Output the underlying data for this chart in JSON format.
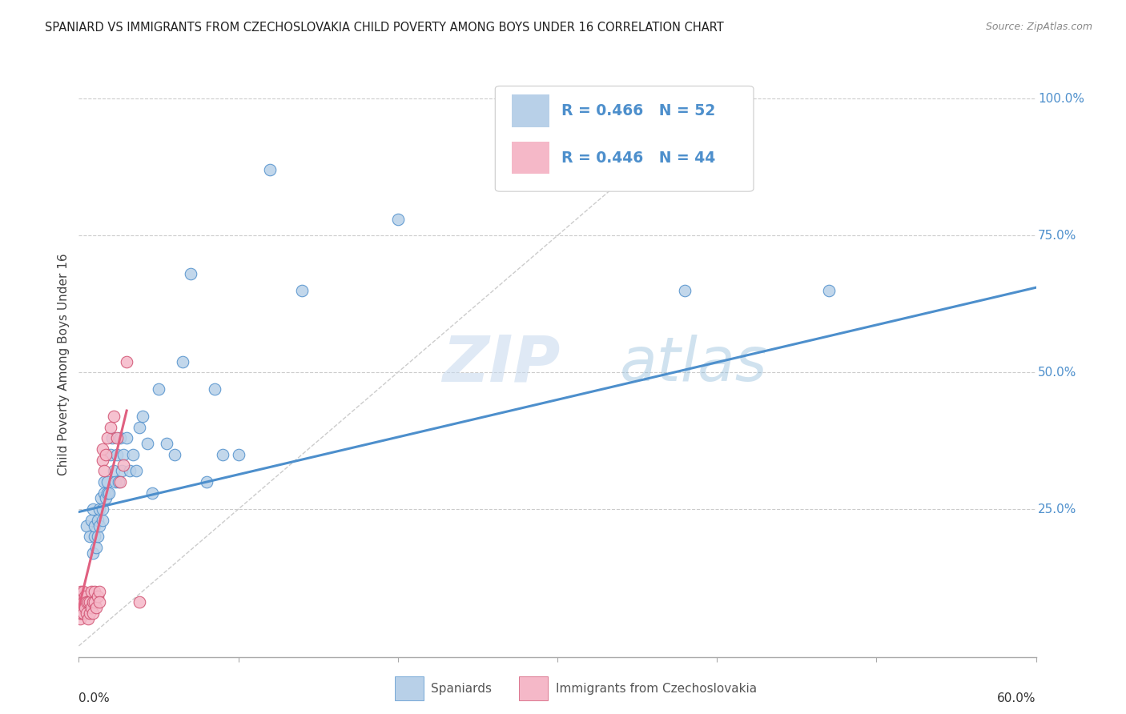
{
  "title": "SPANIARD VS IMMIGRANTS FROM CZECHOSLOVAKIA CHILD POVERTY AMONG BOYS UNDER 16 CORRELATION CHART",
  "source": "Source: ZipAtlas.com",
  "ylabel": "Child Poverty Among Boys Under 16",
  "xlim": [
    0.0,
    0.6
  ],
  "ylim": [
    -0.02,
    1.05
  ],
  "watermark": "ZIPatlas",
  "legend_blue_r": "R = 0.466",
  "legend_blue_n": "N = 52",
  "legend_pink_r": "R = 0.446",
  "legend_pink_n": "N = 44",
  "blue_scatter_color": "#b8d0e8",
  "pink_scatter_color": "#f5b8c8",
  "blue_line_color": "#4d8fcc",
  "pink_line_color": "#e06080",
  "blue_edge_color": "#5090cc",
  "pink_edge_color": "#d05070",
  "legend_color": "#4d8fcc",
  "title_color": "#222222",
  "source_color": "#888888",
  "ylabel_color": "#444444",
  "grid_color": "#cccccc",
  "ref_line_color": "#cccccc",
  "axis_color": "#aaaaaa",
  "ytick_color": "#4d8fcc",
  "bottom_label_color": "#333333",
  "spaniards_x": [
    0.005,
    0.007,
    0.008,
    0.009,
    0.009,
    0.01,
    0.01,
    0.011,
    0.012,
    0.012,
    0.013,
    0.013,
    0.014,
    0.015,
    0.015,
    0.016,
    0.016,
    0.017,
    0.018,
    0.018,
    0.019,
    0.02,
    0.021,
    0.022,
    0.023,
    0.024,
    0.025,
    0.026,
    0.027,
    0.028,
    0.03,
    0.032,
    0.034,
    0.036,
    0.038,
    0.04,
    0.043,
    0.046,
    0.05,
    0.055,
    0.06,
    0.065,
    0.07,
    0.08,
    0.085,
    0.09,
    0.1,
    0.12,
    0.14,
    0.2,
    0.38,
    0.47
  ],
  "spaniards_y": [
    0.22,
    0.2,
    0.23,
    0.17,
    0.25,
    0.2,
    0.22,
    0.18,
    0.23,
    0.2,
    0.25,
    0.22,
    0.27,
    0.23,
    0.25,
    0.3,
    0.28,
    0.27,
    0.3,
    0.28,
    0.28,
    0.35,
    0.38,
    0.32,
    0.3,
    0.35,
    0.3,
    0.38,
    0.32,
    0.35,
    0.38,
    0.32,
    0.35,
    0.32,
    0.4,
    0.42,
    0.37,
    0.28,
    0.47,
    0.37,
    0.35,
    0.52,
    0.68,
    0.3,
    0.47,
    0.35,
    0.35,
    0.87,
    0.65,
    0.78,
    0.65,
    0.65
  ],
  "czech_x": [
    0.0005,
    0.0008,
    0.001,
    0.001,
    0.0012,
    0.0015,
    0.0015,
    0.002,
    0.002,
    0.002,
    0.0025,
    0.003,
    0.003,
    0.003,
    0.004,
    0.004,
    0.005,
    0.005,
    0.006,
    0.006,
    0.007,
    0.007,
    0.008,
    0.008,
    0.009,
    0.009,
    0.01,
    0.01,
    0.011,
    0.012,
    0.013,
    0.013,
    0.015,
    0.015,
    0.016,
    0.017,
    0.018,
    0.02,
    0.022,
    0.024,
    0.026,
    0.028,
    0.03,
    0.038
  ],
  "czech_y": [
    0.07,
    0.05,
    0.08,
    0.06,
    0.08,
    0.1,
    0.07,
    0.08,
    0.06,
    0.09,
    0.07,
    0.08,
    0.06,
    0.1,
    0.07,
    0.09,
    0.08,
    0.06,
    0.08,
    0.05,
    0.08,
    0.06,
    0.1,
    0.07,
    0.08,
    0.06,
    0.1,
    0.08,
    0.07,
    0.09,
    0.1,
    0.08,
    0.36,
    0.34,
    0.32,
    0.35,
    0.38,
    0.4,
    0.42,
    0.38,
    0.3,
    0.33,
    0.52,
    0.08
  ],
  "blue_trend_x": [
    0.0,
    0.6
  ],
  "blue_trend_y": [
    0.245,
    0.655
  ],
  "pink_trend_x": [
    0.0,
    0.03
  ],
  "pink_trend_y": [
    0.07,
    0.43
  ],
  "ref_line_x": [
    0.0,
    0.4
  ],
  "ref_line_y": [
    0.0,
    1.0
  ]
}
